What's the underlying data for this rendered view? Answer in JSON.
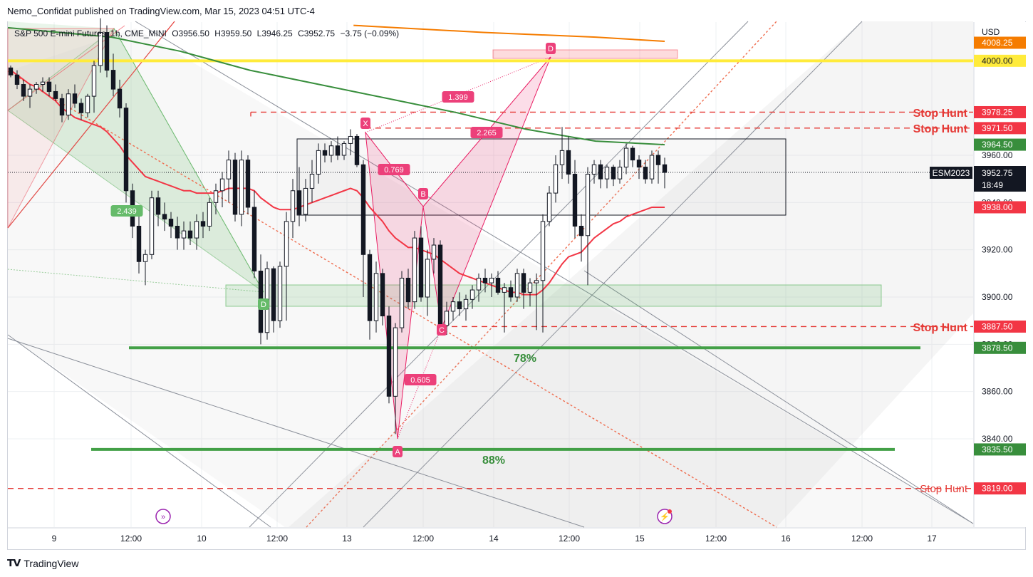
{
  "header": {
    "published_line": "Nemo_Confidat published on TradingView.com, Mar 15, 2023 04:51 UTC-4"
  },
  "legend": {
    "symbol": "S&P 500 E-mini Futures, 1h, CME_MINI",
    "open": "O3956.50",
    "high": "H3959.50",
    "low": "L3946.25",
    "close": "C3952.75",
    "change": "−3.75 (−0.09%)"
  },
  "price_axis": {
    "currency": "USD",
    "ticks": [
      "3960.00",
      "3940.00",
      "3920.00",
      "3900.00",
      "3880.00",
      "3860.00",
      "3840.00"
    ]
  },
  "time_axis": {
    "ticks": [
      "9",
      "12:00",
      "10",
      "12:00",
      "13",
      "12:00",
      "14",
      "12:00",
      "15",
      "12:00",
      "16",
      "12:00",
      "17"
    ]
  },
  "price_labels": [
    {
      "text": "4008.25",
      "bg": "#f57c00"
    },
    {
      "text": "4000.00",
      "bg": "#ffeb3b"
    },
    {
      "text": "3978.25",
      "bg": "#f23645"
    },
    {
      "text": "3971.50",
      "bg": "#f23645"
    },
    {
      "text": "3964.50",
      "bg": "#388e3c"
    },
    {
      "text": "ESM2023",
      "bg": "#131722"
    },
    {
      "text": "3952.75",
      "bg": "#131722"
    },
    {
      "text": "18:49",
      "bg": "#131722"
    },
    {
      "text": "3938.00",
      "bg": "#f23645"
    },
    {
      "text": "3887.50",
      "bg": "#f23645"
    },
    {
      "text": "3878.50",
      "bg": "#388e3c"
    },
    {
      "text": "3835.50",
      "bg": "#388e3c"
    },
    {
      "text": "3819.00",
      "bg": "#f23645"
    }
  ],
  "annotations": {
    "stop_hunt": [
      "Stop Hunt",
      "Stop Hunt",
      "Stop Hunt",
      "Stop Hunt"
    ],
    "fib_78": "78%",
    "fib_88": "88%",
    "harmonic_points": [
      "X",
      "A",
      "B",
      "C",
      "D"
    ],
    "harmonic_ratios": [
      "1.399",
      "2.265",
      "0.769",
      "0.605"
    ],
    "left_pattern_ratio": "2.439",
    "left_pattern_d": "D"
  },
  "footer": {
    "brand": "TradingView"
  },
  "colors": {
    "up_candle": "#ffffff",
    "down_candle": "#131722",
    "stop_hunt": "#e53935",
    "support": "#43a047",
    "harmonic": "#e91e63",
    "ema_red": "#f23645",
    "ma_green": "#388e3c",
    "ma_orange": "#f57c00",
    "level_4000": "#ffeb3b"
  },
  "chart_data": {
    "type": "candlestick",
    "symbol": "ESM2023",
    "timeframe": "1h",
    "ylim": [
      3812,
      4018
    ],
    "levels": {
      "stop_hunt": [
        3978.25,
        3971.5,
        3887.5,
        3819.0
      ],
      "support_78": 3878.5,
      "support_88": 3835.5,
      "yellow_4000": 4000.0,
      "current_price": 3952.75,
      "ma_green_last": 3964.5,
      "ema_red_last": 3938.0,
      "orange_ma_last": 4008.25
    },
    "candles": [
      [
        3997,
        3998,
        3993,
        3994
      ],
      [
        3994,
        3996,
        3988,
        3990
      ],
      [
        3990,
        3992,
        3983,
        3985
      ],
      [
        3985,
        3990,
        3980,
        3988
      ],
      [
        3988,
        3991,
        3986,
        3990
      ],
      [
        3990,
        3993,
        3987,
        3991
      ],
      [
        3991,
        3993,
        3985,
        3987
      ],
      [
        3987,
        3990,
        3983,
        3984
      ],
      [
        3984,
        3986,
        3974,
        3977
      ],
      [
        3977,
        3988,
        3975,
        3986
      ],
      [
        3986,
        3990,
        3980,
        3982
      ],
      [
        3982,
        3984,
        3975,
        3978
      ],
      [
        3978,
        3986,
        3976,
        3985
      ],
      [
        3985,
        4000,
        3978,
        3998
      ],
      [
        3998,
        4018,
        3995,
        4012
      ],
      [
        4012,
        4015,
        3993,
        3996
      ],
      [
        3996,
        4003,
        3985,
        3988
      ],
      [
        3988,
        3992,
        3976,
        3980
      ],
      [
        3980,
        3982,
        3940,
        3945
      ],
      [
        3945,
        3948,
        3925,
        3930
      ],
      [
        3930,
        3935,
        3910,
        3915
      ],
      [
        3915,
        3920,
        3905,
        3918
      ],
      [
        3918,
        3945,
        3916,
        3942
      ],
      [
        3942,
        3945,
        3930,
        3935
      ],
      [
        3935,
        3940,
        3928,
        3933
      ],
      [
        3933,
        3936,
        3925,
        3930
      ],
      [
        3930,
        3934,
        3920,
        3925
      ],
      [
        3925,
        3932,
        3920,
        3928
      ],
      [
        3928,
        3932,
        3922,
        3925
      ],
      [
        3925,
        3935,
        3920,
        3932
      ],
      [
        3932,
        3936,
        3925,
        3930
      ],
      [
        3930,
        3942,
        3928,
        3940
      ],
      [
        3940,
        3948,
        3935,
        3945
      ],
      [
        3945,
        3953,
        3938,
        3950
      ],
      [
        3950,
        3962,
        3940,
        3958
      ],
      [
        3958,
        3961,
        3932,
        3935
      ],
      [
        3935,
        3962,
        3930,
        3958
      ],
      [
        3958,
        3960,
        3935,
        3938
      ],
      [
        3938,
        3945,
        3908,
        3911
      ],
      [
        3911,
        3918,
        3880,
        3885
      ],
      [
        3885,
        3915,
        3882,
        3912
      ],
      [
        3912,
        3913,
        3885,
        3890
      ],
      [
        3890,
        3915,
        3887,
        3913
      ],
      [
        3913,
        3936,
        3890,
        3932
      ],
      [
        3932,
        3950,
        3925,
        3945
      ],
      [
        3945,
        3955,
        3930,
        3935
      ],
      [
        3935,
        3950,
        3932,
        3946
      ],
      [
        3946,
        3958,
        3940,
        3952
      ],
      [
        3952,
        3965,
        3948,
        3962
      ],
      [
        3962,
        3965,
        3957,
        3960
      ],
      [
        3960,
        3966,
        3957,
        3964
      ],
      [
        3964,
        3968,
        3958,
        3960
      ],
      [
        3960,
        3966,
        3958,
        3965
      ],
      [
        3965,
        3971,
        3960,
        3968
      ],
      [
        3968,
        3969,
        3955,
        3956
      ],
      [
        3956,
        3958,
        3900,
        3918
      ],
      [
        3918,
        3920,
        3882,
        3890
      ],
      [
        3890,
        3915,
        3885,
        3910
      ],
      [
        3910,
        3912,
        3888,
        3892
      ],
      [
        3892,
        3896,
        3855,
        3858
      ],
      [
        3858,
        3889,
        3842,
        3887
      ],
      [
        3887,
        3911,
        3885,
        3908
      ],
      [
        3908,
        3912,
        3895,
        3898
      ],
      [
        3898,
        3928,
        3895,
        3925
      ],
      [
        3925,
        3930,
        3898,
        3900
      ],
      [
        3900,
        3920,
        3892,
        3916
      ],
      [
        3916,
        3925,
        3910,
        3922
      ],
      [
        3922,
        3924,
        3885,
        3888
      ],
      [
        3888,
        3898,
        3884,
        3894
      ],
      [
        3894,
        3900,
        3890,
        3898
      ],
      [
        3898,
        3902,
        3892,
        3895
      ],
      [
        3895,
        3901,
        3890,
        3899
      ],
      [
        3899,
        3905,
        3895,
        3903
      ],
      [
        3903,
        3910,
        3898,
        3908
      ],
      [
        3908,
        3912,
        3902,
        3906
      ],
      [
        3906,
        3910,
        3900,
        3908
      ],
      [
        3908,
        3911,
        3901,
        3902
      ],
      [
        3902,
        3906,
        3885,
        3904
      ],
      [
        3904,
        3907,
        3898,
        3900
      ],
      [
        3900,
        3912,
        3898,
        3910
      ],
      [
        3910,
        3912,
        3895,
        3902
      ],
      [
        3902,
        3908,
        3896,
        3906
      ],
      [
        3906,
        3910,
        3886,
        3907
      ],
      [
        3907,
        3935,
        3885,
        3932
      ],
      [
        3932,
        3947,
        3930,
        3944
      ],
      [
        3944,
        3960,
        3940,
        3956
      ],
      [
        3956,
        3972,
        3950,
        3962
      ],
      [
        3962,
        3968,
        3948,
        3952
      ],
      [
        3952,
        3958,
        3925,
        3930
      ],
      [
        3930,
        3935,
        3915,
        3926
      ],
      [
        3926,
        3955,
        3905,
        3952
      ],
      [
        3952,
        3958,
        3948,
        3956
      ],
      [
        3956,
        3958,
        3946,
        3950
      ],
      [
        3950,
        3956,
        3946,
        3955
      ],
      [
        3955,
        3956,
        3947,
        3950
      ],
      [
        3950,
        3958,
        3948,
        3955
      ],
      [
        3955,
        3965,
        3952,
        3963
      ],
      [
        3963,
        3964,
        3955,
        3958
      ],
      [
        3958,
        3960,
        3950,
        3955
      ],
      [
        3955,
        3958,
        3948,
        3950
      ],
      [
        3950,
        3962,
        3948,
        3960
      ],
      [
        3960,
        3962,
        3948,
        3956
      ],
      [
        3956,
        3959,
        3946,
        3952.75
      ]
    ],
    "ema_red": [
      3996,
      3994,
      3992,
      3990,
      3989,
      3987,
      3985,
      3983,
      3980,
      3978,
      3976,
      3975,
      3974,
      3973,
      3972,
      3970,
      3967,
      3964,
      3960,
      3957,
      3954,
      3951,
      3950,
      3949,
      3948,
      3947,
      3946,
      3945,
      3945,
      3944,
      3944,
      3944,
      3944,
      3945,
      3946,
      3946,
      3946,
      3946,
      3945,
      3942,
      3940,
      3938,
      3937,
      3937,
      3937,
      3938,
      3939,
      3940,
      3941,
      3942,
      3943,
      3944,
      3945,
      3946,
      3945,
      3942,
      3938,
      3935,
      3932,
      3928,
      3925,
      3923,
      3921,
      3921,
      3920,
      3919,
      3918,
      3916,
      3914,
      3912,
      3910,
      3909,
      3908,
      3907,
      3906,
      3905,
      3904,
      3903,
      3902,
      3902,
      3901,
      3901,
      3901,
      3903,
      3906,
      3910,
      3914,
      3917,
      3918,
      3919,
      3922,
      3925,
      3927,
      3929,
      3931,
      3932,
      3934,
      3935,
      3936,
      3937,
      3938,
      3938,
      3938
    ],
    "ma_green_points": [
      [
        0,
        4014
      ],
      [
        0.12,
        4010
      ],
      [
        0.2,
        4004
      ],
      [
        0.28,
        3996
      ],
      [
        0.36,
        3990
      ],
      [
        0.44,
        3984
      ],
      [
        0.52,
        3978
      ],
      [
        0.6,
        3971
      ],
      [
        0.68,
        3966
      ],
      [
        0.76,
        3964.5
      ]
    ],
    "ma_orange_points": [
      [
        0.4,
        4015
      ],
      [
        0.55,
        4012
      ],
      [
        0.68,
        4010
      ],
      [
        0.76,
        4008.25
      ]
    ]
  }
}
